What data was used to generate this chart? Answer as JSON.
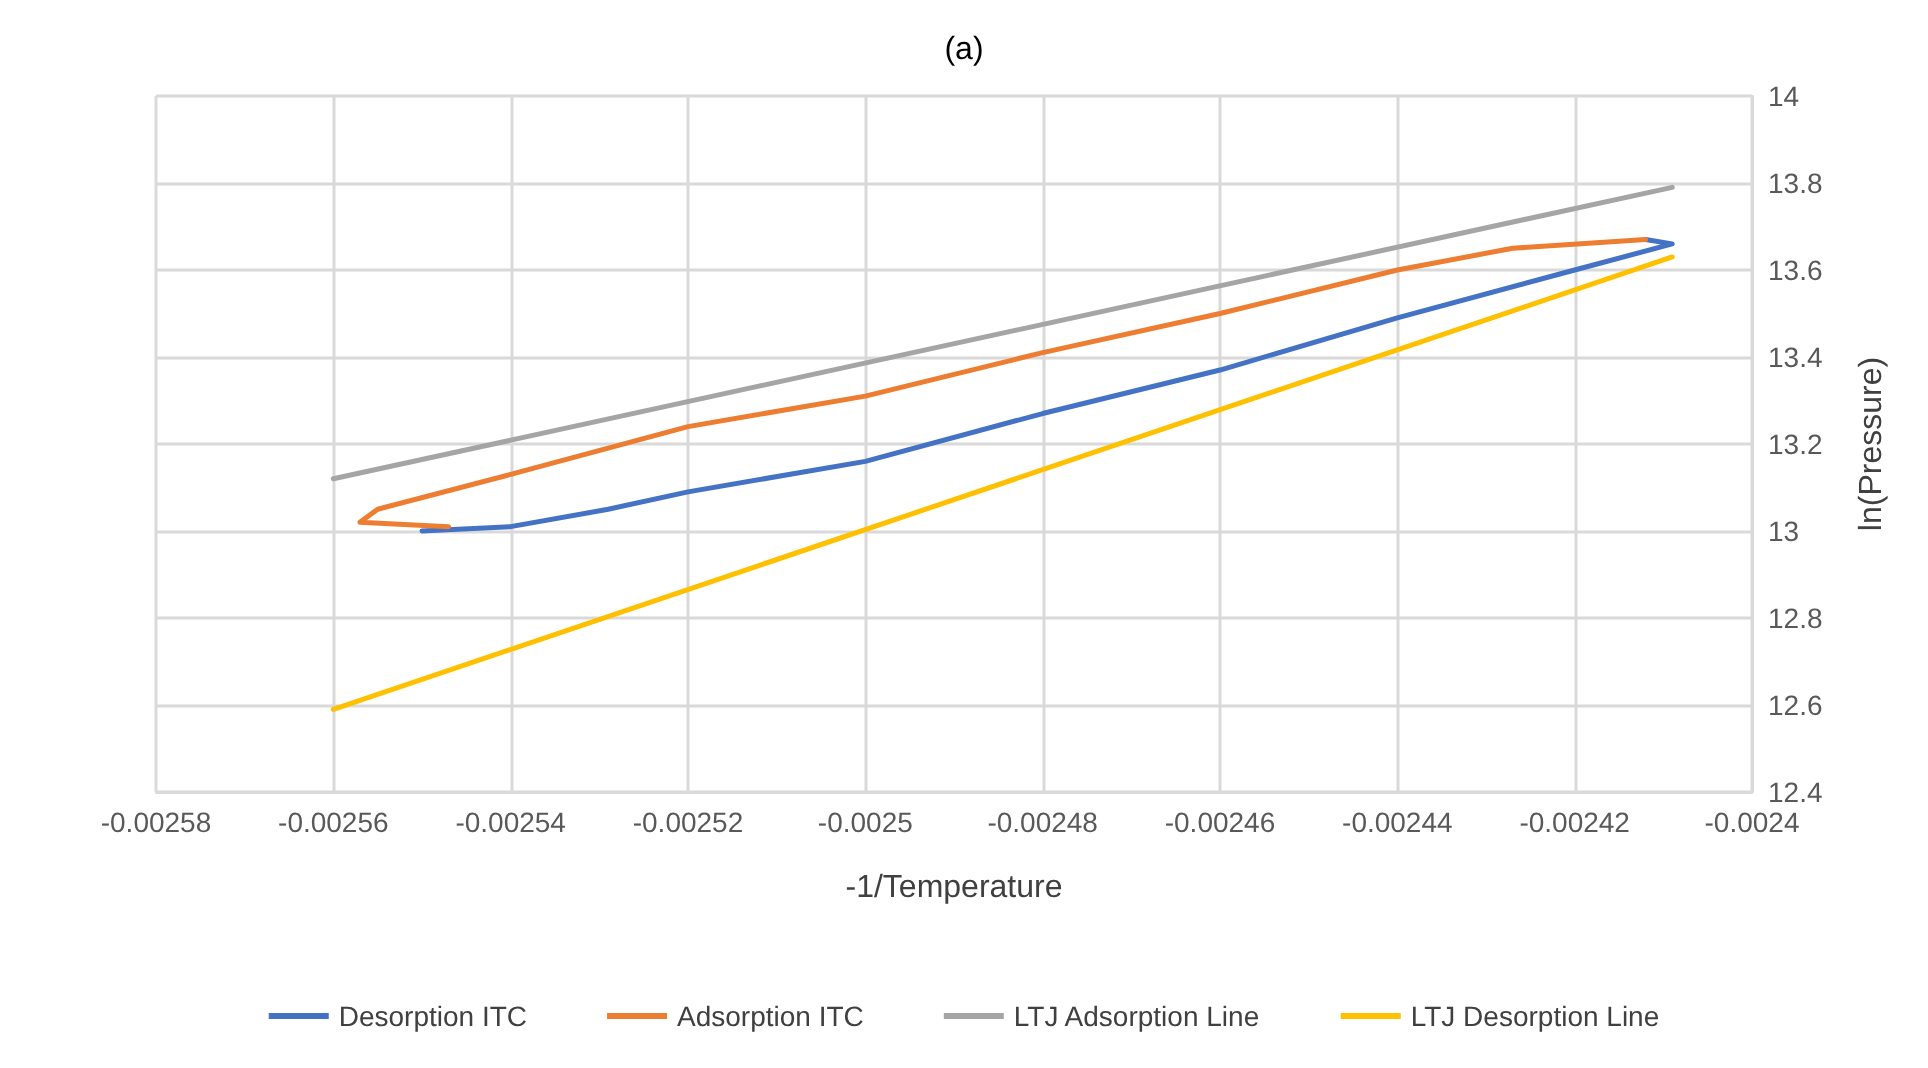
{
  "chart_data": {
    "type": "line",
    "title": "(a)",
    "xlabel": "-1/Temperature",
    "ylabel": "ln(Pressure)",
    "xlim": [
      -0.00258,
      -0.0024
    ],
    "xticks": [
      -0.00258,
      -0.00256,
      -0.00254,
      -0.00252,
      -0.0025,
      -0.00248,
      -0.00246,
      -0.00244,
      -0.00242,
      -0.0024
    ],
    "ylim": [
      12.4,
      14
    ],
    "yticks": [
      12.4,
      12.6,
      12.8,
      13,
      13.2,
      13.4,
      13.6,
      13.8,
      14
    ],
    "grid": true,
    "legend": "bottom",
    "marker": "none",
    "line_style": "solid",
    "series": [
      {
        "name": "Desorption ITC",
        "color": "#4472c4",
        "x": [
          -0.00255,
          -0.00254,
          -0.002529,
          -0.00252,
          -0.0025,
          -0.00248,
          -0.00246,
          -0.00244,
          -0.00242,
          -0.002409,
          -0.002412
        ],
        "values": [
          13.0,
          13.01,
          13.05,
          13.09,
          13.16,
          13.27,
          13.37,
          13.49,
          13.6,
          13.66,
          13.67
        ]
      },
      {
        "name": "Adsorption ITC",
        "color": "#ed7d31",
        "x": [
          -0.002547,
          -0.002557,
          -0.002555,
          -0.00254,
          -0.00252,
          -0.0025,
          -0.00248,
          -0.00246,
          -0.00244,
          -0.002427,
          -0.002412
        ],
        "values": [
          13.01,
          13.02,
          13.05,
          13.13,
          13.24,
          13.31,
          13.41,
          13.5,
          13.6,
          13.65,
          13.67
        ]
      },
      {
        "name": "LTJ Adsorption Line",
        "color": "#a5a5a5",
        "x": [
          -0.00256,
          -0.002409
        ],
        "values": [
          13.12,
          13.79
        ]
      },
      {
        "name": "LTJ Desorption Line",
        "color": "#ffc000",
        "x": [
          -0.00256,
          -0.002409
        ],
        "values": [
          12.59,
          13.63
        ]
      }
    ]
  }
}
